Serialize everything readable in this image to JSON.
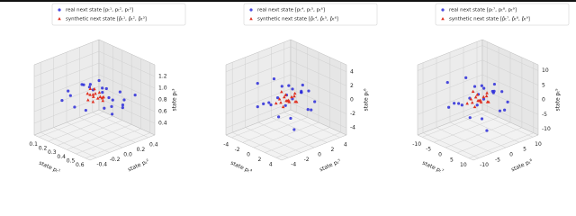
{
  "chart_data": [
    {
      "type": "scatter3d",
      "xlabel": "state pₜ¹",
      "ylabel": "state pₜ²",
      "zlabel": "state pₜ³",
      "xlim": [
        0.05,
        0.65
      ],
      "ylim": [
        -0.5,
        0.5
      ],
      "zlim": [
        0.2,
        1.4
      ],
      "xticks": [
        0.1,
        0.2,
        0.3,
        0.4,
        0.5,
        0.6
      ],
      "yticks": [
        -0.4,
        -0.2,
        {
          "value": 0,
          "label": "0.0"
        },
        0.2,
        0.4
      ],
      "zticks": [
        0.4,
        0.6,
        0.8,
        {
          "value": 1,
          "label": "1.0"
        },
        1.2
      ],
      "series": [
        {
          "name": "real next state [pₜ¹, pₜ², pₜ³]",
          "color": "#2b2bd9",
          "marker": "o",
          "x": [
            0.21,
            0.35,
            0.48,
            0.29,
            0.55,
            0.41,
            0.18,
            0.33,
            0.44,
            0.52,
            0.26,
            0.38,
            0.47,
            0.31,
            0.24,
            0.58,
            0.36,
            0.43,
            0.15,
            0.5,
            0.28,
            0.4,
            0.34,
            0.46
          ],
          "y": [
            -0.3,
            0.12,
            0.25,
            -0.08,
            0.34,
            -0.22,
            0.05,
            0.31,
            -0.15,
            0.02,
            0.2,
            -0.35,
            0.1,
            -0.02,
            0.28,
            -0.18,
            0.38,
            0.07,
            -0.12,
            0.22,
            -0.27,
            0.15,
            -0.05,
            0.3
          ],
          "z": [
            0.82,
            0.95,
            0.7,
            1.05,
            0.88,
            0.76,
            0.92,
            0.65,
            1.1,
            0.8,
            0.98,
            0.85,
            0.6,
            1.0,
            0.73,
            0.9,
            0.78,
            1.02,
            0.86,
            0.68,
            0.94,
            0.81,
            1.08,
            0.75
          ]
        },
        {
          "name": "synthetic next state [p̂ₜ¹, p̂ₜ², p̂ₜ³]",
          "color": "#e03020",
          "marker": "^",
          "x": [
            0.32,
            0.38,
            0.29,
            0.42,
            0.35,
            0.3,
            0.4,
            0.36,
            0.33,
            0.44,
            0.27,
            0.39,
            0.34,
            0.41,
            0.31,
            0.37
          ],
          "y": [
            0.02,
            -0.06,
            0.1,
            0.04,
            -0.1,
            0.07,
            -0.02,
            0.12,
            -0.04,
            0.0,
            0.05,
            -0.08,
            0.09,
            0.03,
            -0.05,
            0.06
          ],
          "z": [
            0.86,
            0.9,
            0.82,
            0.88,
            0.84,
            0.92,
            0.87,
            0.8,
            0.89,
            0.85,
            0.91,
            0.83,
            0.88,
            0.86,
            0.9,
            0.84
          ]
        }
      ]
    },
    {
      "type": "scatter3d",
      "xlabel": "state pₜ⁴",
      "ylabel": "state pₜ⁵",
      "zlabel": "state pₜ⁶",
      "xlim": [
        -5,
        5
      ],
      "ylim": [
        -5,
        5
      ],
      "zlim": [
        -5,
        5
      ],
      "xticks": [
        -4,
        -2,
        0,
        2,
        4
      ],
      "yticks": [
        -4,
        -2,
        0,
        2,
        4
      ],
      "zticks": [
        -4,
        -2,
        0,
        2,
        4
      ],
      "series": [
        {
          "name": "real next state [pₜ⁴, pₜ⁵, pₜ⁶]",
          "color": "#2b2bd9",
          "marker": "o",
          "x": [
            -2.5,
            1.2,
            3.1,
            -0.8,
            2.4,
            -3.2,
            0.5,
            1.8,
            -1.6,
            2.9,
            -2.1,
            0.9,
            3.4,
            -0.3,
            -2.8,
            1.5,
            -1.1,
            2.2,
            0.1,
            -3.5,
            1.0,
            -0.6,
            2.7,
            -1.9
          ],
          "y": [
            1.5,
            -2.2,
            0.8,
            3.0,
            -1.1,
            0.4,
            -3.1,
            2.3,
            -0.5,
            1.9,
            -2.6,
            0.2,
            -1.7,
            2.8,
            1.1,
            -0.9,
            3.3,
            -2.0,
            0.6,
            -1.4,
            2.5,
            -3.0,
            0.0,
            1.7
          ],
          "z": [
            0.5,
            -1.2,
            2.1,
            -0.3,
            1.4,
            -2.0,
            0.9,
            -1.6,
            2.6,
            0.1,
            -0.8,
            1.8,
            -2.4,
            1.0,
            -1.1,
            2.9,
            -0.5,
            0.7,
            -2.8,
            1.6,
            -1.9,
            0.3,
            2.2,
            -0.6
          ]
        },
        {
          "name": "synthetic next state [p̂ₜ⁴, p̂ₜ⁵, p̂ₜ⁶]",
          "color": "#e03020",
          "marker": "^",
          "x": [
            -0.8,
            0.5,
            1.1,
            -0.3,
            0.9,
            -1.2,
            0.2,
            0.7,
            -0.6,
            1.3,
            -1.0,
            0.4,
            -0.1,
            0.8,
            -0.5,
            0.0
          ],
          "y": [
            0.6,
            -0.9,
            0.3,
            1.1,
            -0.4,
            0.2,
            -1.2,
            0.8,
            -0.2,
            0.5,
            -0.7,
            1.0,
            0.1,
            -0.5,
            0.9,
            -0.3
          ],
          "z": [
            0.2,
            -0.5,
            0.8,
            -0.1,
            0.4,
            -0.9,
            0.6,
            -0.3,
            1.0,
            0.0,
            -0.6,
            0.7,
            -0.2,
            0.3,
            -0.8,
            0.5
          ]
        }
      ]
    },
    {
      "type": "scatter3d",
      "xlabel": "state pₜ⁷",
      "ylabel": "state pₜ⁸",
      "zlabel": "state pₜ⁹",
      "xlim": [
        -12,
        12
      ],
      "ylim": [
        -12,
        12
      ],
      "zlim": [
        -12,
        12
      ],
      "xticks": [
        -10,
        -5,
        0,
        5,
        10
      ],
      "yticks": [
        -10,
        -5,
        0,
        5,
        10
      ],
      "zticks": [
        -10,
        -5,
        0,
        5,
        10
      ],
      "series": [
        {
          "name": "real next state [pₜ⁷, pₜ⁸, pₜ⁹]",
          "color": "#2b2bd9",
          "marker": "o",
          "x": [
            -6,
            3,
            8,
            -2,
            6,
            -8,
            1,
            4.5,
            -4,
            7,
            -5,
            2,
            8.5,
            -1,
            -7,
            4,
            -3,
            5.5,
            0,
            -9,
            2.5,
            -1.5,
            7,
            -5
          ],
          "y": [
            4,
            -5.5,
            2,
            7.5,
            -3,
            1,
            -8,
            6,
            -1,
            5,
            -6.5,
            0.5,
            -4,
            7,
            3,
            -2,
            8,
            -5,
            1.5,
            -3.5,
            6,
            -7.5,
            0,
            4.5
          ],
          "z": [
            1,
            -3,
            5,
            -1,
            3.5,
            -5,
            2,
            -4,
            6.5,
            0,
            -2,
            4.5,
            -6,
            2.5,
            -3,
            7,
            -1,
            2,
            -7,
            4,
            -5,
            1,
            5.5,
            -1.5
          ]
        },
        {
          "name": "synthetic next state [p̂ₜ⁷, p̂ₜ⁸, p̂ₜ⁹]",
          "color": "#e03020",
          "marker": "^",
          "x": [
            -2,
            1.2,
            2.8,
            -0.8,
            2.2,
            -3,
            0.5,
            1.8,
            -1.5,
            3.2,
            -2.5,
            1,
            -0.3,
            2,
            -1.2,
            0
          ],
          "y": [
            1.5,
            -2.2,
            0.8,
            2.8,
            -1,
            0.5,
            -3,
            2,
            -0.5,
            1.2,
            -1.8,
            2.5,
            0.3,
            -1.2,
            2.2,
            -0.8
          ],
          "z": [
            0.5,
            -1.2,
            2,
            -0.3,
            1,
            -2.2,
            1.5,
            -0.8,
            2.5,
            0,
            -1.5,
            1.8,
            -0.5,
            0.8,
            -2,
            1.2
          ]
        }
      ]
    }
  ]
}
